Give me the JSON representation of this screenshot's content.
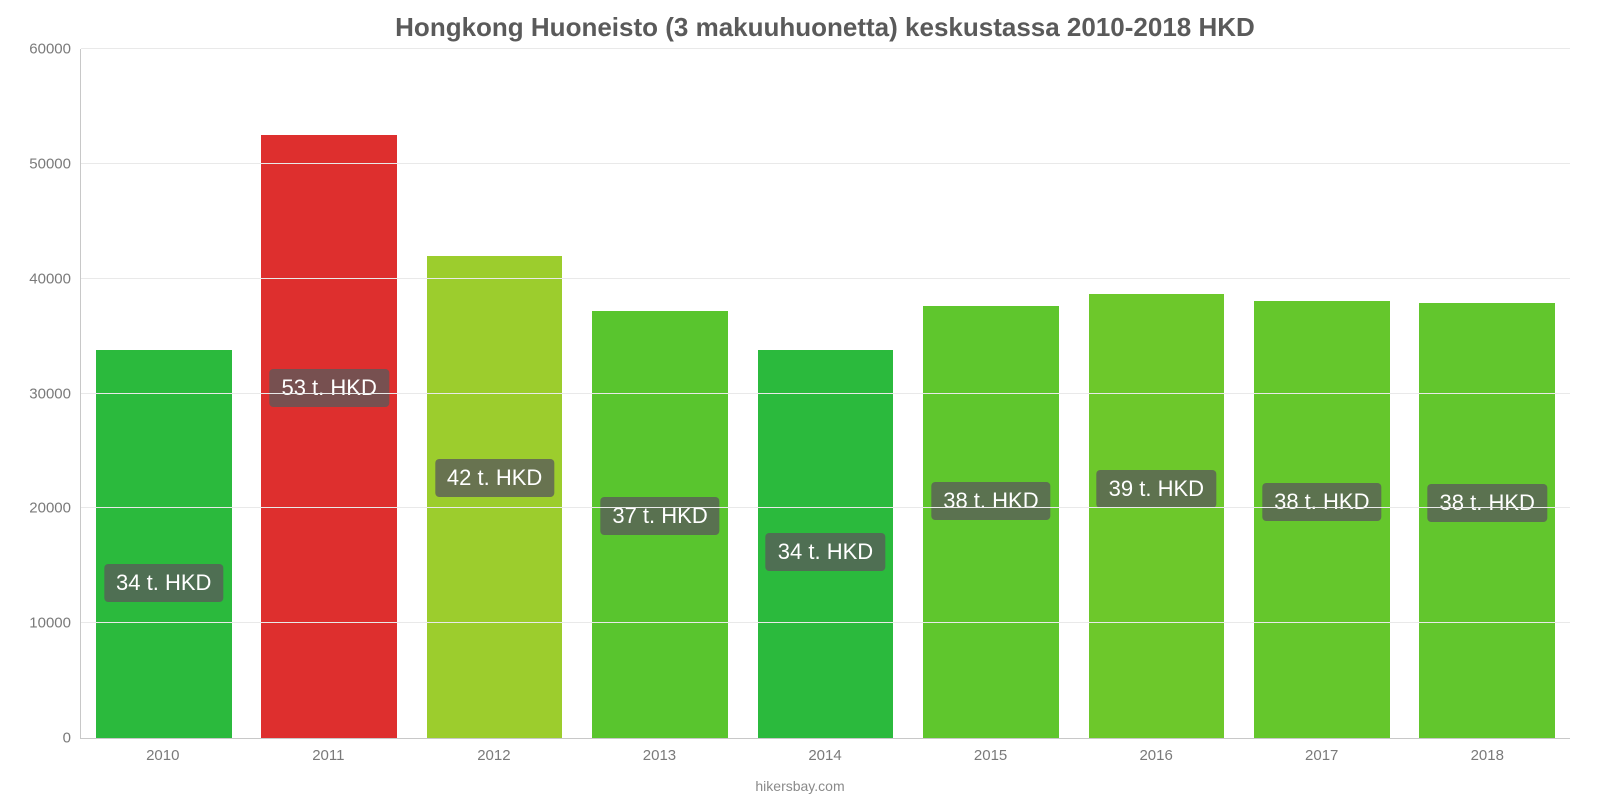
{
  "chart": {
    "type": "bar",
    "title": "Hongkong Huoneisto (3 makuuhuonetta) keskustassa 2010-2018 HKD",
    "title_fontsize": 26,
    "title_color": "#5a5a5a",
    "background_color": "#ffffff",
    "grid_color": "#e9e9e9",
    "axis_color": "#c8c8c8",
    "tick_font_color": "#7a7a7a",
    "tick_fontsize": 15,
    "attribution": "hikersbay.com",
    "ylim": [
      0,
      60000
    ],
    "ytick_step": 10000,
    "yticks": [
      {
        "value": 0,
        "label": "0"
      },
      {
        "value": 10000,
        "label": "10000"
      },
      {
        "value": 20000,
        "label": "20000"
      },
      {
        "value": 30000,
        "label": "30000"
      },
      {
        "value": 40000,
        "label": "40000"
      },
      {
        "value": 50000,
        "label": "50000"
      },
      {
        "value": 60000,
        "label": "60000"
      }
    ],
    "bar_width_ratio": 0.82,
    "value_label_bg": "rgba(90,90,90,0.78)",
    "value_label_color": "#ffffff",
    "value_label_fontsize": 22,
    "bars": [
      {
        "category": "2010",
        "value": 33800,
        "label": "34 t. HKD",
        "color": "#2bba3d"
      },
      {
        "category": "2011",
        "value": 52500,
        "label": "53 t. HKD",
        "color": "#de2f2e"
      },
      {
        "category": "2012",
        "value": 42000,
        "label": "42 t. HKD",
        "color": "#9ccd2d"
      },
      {
        "category": "2013",
        "value": 37200,
        "label": "37 t. HKD",
        "color": "#59c52e"
      },
      {
        "category": "2014",
        "value": 33800,
        "label": "34 t. HKD",
        "color": "#2bba3d"
      },
      {
        "category": "2015",
        "value": 37600,
        "label": "38 t. HKD",
        "color": "#5fc62d"
      },
      {
        "category": "2016",
        "value": 38700,
        "label": "39 t. HKD",
        "color": "#6dc82b"
      },
      {
        "category": "2017",
        "value": 38100,
        "label": "38 t. HKD",
        "color": "#65c72c"
      },
      {
        "category": "2018",
        "value": 37900,
        "label": "38 t. HKD",
        "color": "#62c62d"
      }
    ]
  }
}
